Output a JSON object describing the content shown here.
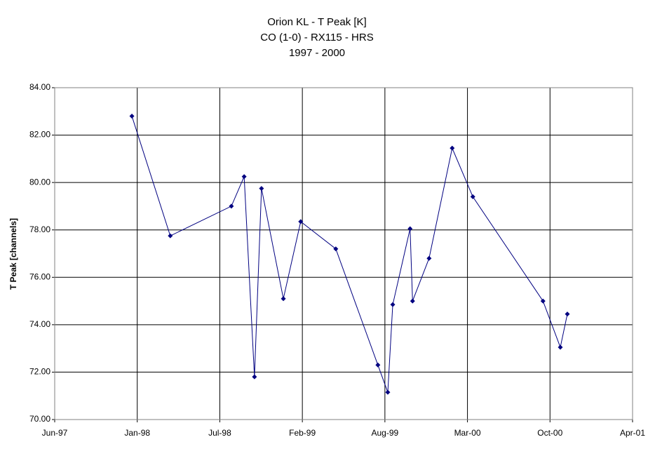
{
  "chart_data": {
    "type": "line",
    "title": [
      "Orion KL - T Peak [K]",
      "CO (1-0) - RX115 - HRS",
      "1997 - 2000"
    ],
    "ylabel": "T Peak [channels]",
    "x": [
      35789,
      35882,
      36030,
      36061,
      36086,
      36103,
      36156,
      36198,
      36283,
      36385,
      36409,
      36421,
      36463,
      36469,
      36509,
      36565,
      36615,
      36785,
      36827,
      36844
    ],
    "series": [
      {
        "color": "#000080",
        "values": [
          82.8,
          77.75,
          79.0,
          80.25,
          71.8,
          79.75,
          75.1,
          78.35,
          77.2,
          72.3,
          71.15,
          74.85,
          78.05,
          75.0,
          76.8,
          81.45,
          79.4,
          75.0,
          73.05,
          74.45
        ]
      }
    ],
    "xlim": [
      35602,
      37002
    ],
    "xticks": [
      {
        "value": 35602,
        "label": "Jun-97"
      },
      {
        "value": 35802,
        "label": "Jan-98"
      },
      {
        "value": 36002,
        "label": "Jul-98"
      },
      {
        "value": 36202,
        "label": "Feb-99"
      },
      {
        "value": 36402,
        "label": "Aug-99"
      },
      {
        "value": 36602,
        "label": "Mar-00"
      },
      {
        "value": 36802,
        "label": "Oct-00"
      },
      {
        "value": 37002,
        "label": "Apr-01"
      }
    ],
    "ylim": [
      70,
      84
    ],
    "yticks": [
      {
        "value": 70,
        "label": "70.00"
      },
      {
        "value": 72,
        "label": "72.00"
      },
      {
        "value": 74,
        "label": "74.00"
      },
      {
        "value": 76,
        "label": "76.00"
      },
      {
        "value": 78,
        "label": "78.00"
      },
      {
        "value": 80,
        "label": "80.00"
      },
      {
        "value": 82,
        "label": "82.00"
      },
      {
        "value": 84,
        "label": "84.00"
      }
    ],
    "grid": true
  }
}
